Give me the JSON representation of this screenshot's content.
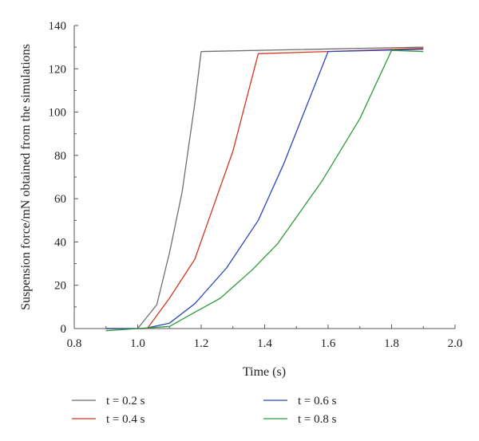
{
  "chart_data": {
    "type": "line",
    "title": "",
    "xlabel": "Time (s)",
    "ylabel": "Suspension force/mN obtained from the simulations",
    "xlim": [
      0.8,
      2.0
    ],
    "ylim": [
      0,
      140
    ],
    "x_ticks": [
      "0.8",
      "1.0",
      "1.2",
      "1.4",
      "1.6",
      "1.8",
      "2.0"
    ],
    "y_ticks": [
      "0",
      "20",
      "40",
      "60",
      "80",
      "100",
      "120",
      "140"
    ],
    "grid": false,
    "legend_position": "bottom",
    "series": [
      {
        "name": "t = 0.2 s",
        "color": "#6e6e6e",
        "points": [
          [
            0.9,
            0
          ],
          [
            1.0,
            0
          ],
          [
            1.06,
            11
          ],
          [
            1.1,
            35
          ],
          [
            1.14,
            63
          ],
          [
            1.18,
            104
          ],
          [
            1.2,
            128
          ],
          [
            1.9,
            130
          ]
        ]
      },
      {
        "name": "t = 0.4 s",
        "color": "#d0391e",
        "points": [
          [
            0.9,
            0
          ],
          [
            1.03,
            0
          ],
          [
            1.1,
            14
          ],
          [
            1.18,
            32
          ],
          [
            1.3,
            82
          ],
          [
            1.38,
            127
          ],
          [
            1.6,
            128
          ],
          [
            1.9,
            129.5
          ]
        ]
      },
      {
        "name": "t = 0.6 s",
        "color": "#2a48b8",
        "points": [
          [
            0.9,
            0
          ],
          [
            1.02,
            0
          ],
          [
            1.1,
            2.5
          ],
          [
            1.18,
            11.5
          ],
          [
            1.28,
            28
          ],
          [
            1.38,
            50
          ],
          [
            1.46,
            76
          ],
          [
            1.6,
            128
          ],
          [
            1.9,
            129
          ]
        ]
      },
      {
        "name": "t = 0.8 s",
        "color": "#2f9a3a",
        "points": [
          [
            0.9,
            -1
          ],
          [
            1.0,
            0
          ],
          [
            1.1,
            1
          ],
          [
            1.18,
            7.5
          ],
          [
            1.26,
            14
          ],
          [
            1.36,
            27
          ],
          [
            1.44,
            39
          ],
          [
            1.58,
            68
          ],
          [
            1.7,
            97
          ],
          [
            1.8,
            128.5
          ],
          [
            1.9,
            128
          ]
        ]
      }
    ]
  }
}
